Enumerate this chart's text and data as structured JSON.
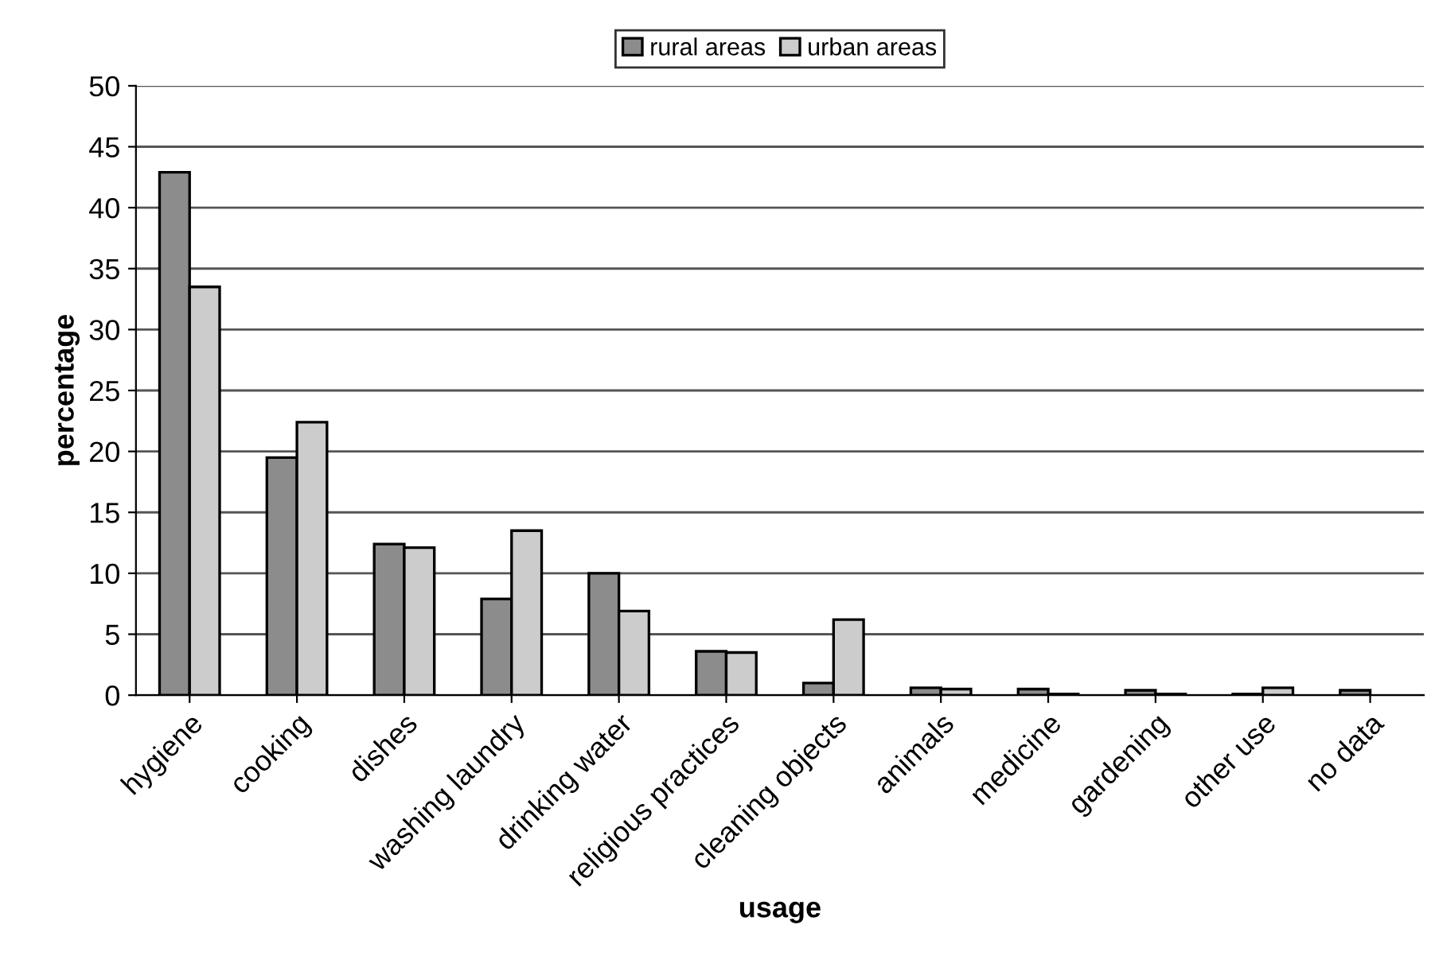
{
  "chart_data": {
    "type": "bar",
    "xlabel": "usage",
    "ylabel": "percentage",
    "categories": [
      "hygiene",
      "cooking",
      "dishes",
      "washing laundry",
      "drinking water",
      "religious practices",
      "cleaning objects",
      "animals",
      "medicine",
      "gardening",
      "other use",
      "no data"
    ],
    "series": [
      {
        "name": "rural areas",
        "color": "#8c8c8c",
        "values": [
          42.9,
          19.5,
          12.4,
          7.9,
          10.0,
          3.6,
          1.0,
          0.6,
          0.5,
          0.4,
          0.1,
          0.4
        ]
      },
      {
        "name": "urban areas",
        "color": "#cccccc",
        "values": [
          33.5,
          22.4,
          12.1,
          13.5,
          6.9,
          3.5,
          6.2,
          0.5,
          0.1,
          0.1,
          0.6,
          null
        ]
      }
    ],
    "ylim": [
      0,
      50
    ],
    "yticks": [
      0,
      5,
      10,
      15,
      20,
      25,
      30,
      35,
      40,
      45,
      50
    ],
    "grid": "y",
    "legend": "top"
  }
}
